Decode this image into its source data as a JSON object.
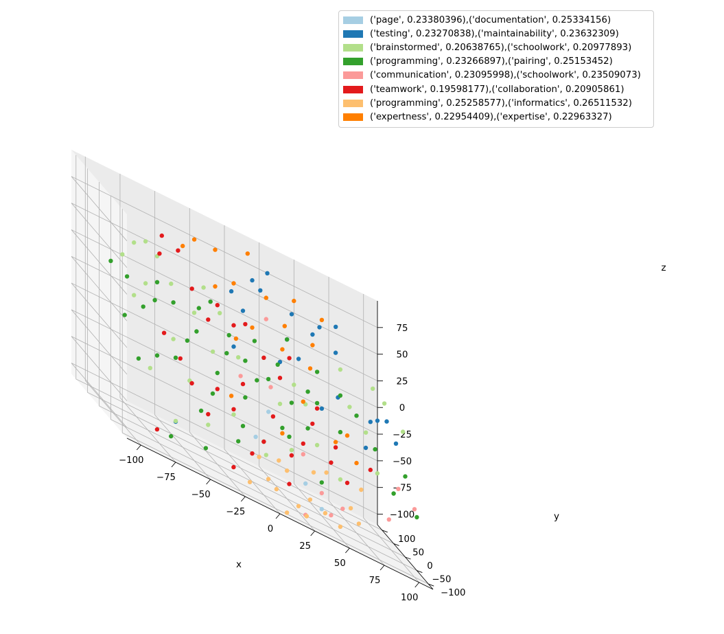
{
  "chart_data": {
    "type": "scatter",
    "projection": "3d",
    "xlabel": "x",
    "ylabel": "y",
    "zlabel": "z",
    "xlim": [
      -110,
      110
    ],
    "ylim": [
      -120,
      120
    ],
    "zlim": [
      -110,
      100
    ],
    "x_ticks": [
      -100,
      -75,
      -50,
      -25,
      0,
      25,
      50,
      75,
      100
    ],
    "y_ticks": [
      -100,
      -50,
      0,
      50,
      100
    ],
    "z_ticks": [
      -100,
      -75,
      -50,
      -25,
      0,
      25,
      50,
      75
    ],
    "grid": true,
    "legend_position": "top-right",
    "series": [
      {
        "name": "('page', 0.23380396),('documentation', 0.25334156)",
        "color": "#a6cee3",
        "points": [
          [
            -5,
            -45,
            -60
          ],
          [
            30,
            -50,
            -80
          ],
          [
            40,
            -60,
            -95
          ],
          [
            15,
            20,
            -40
          ]
        ]
      },
      {
        "name": "('testing', 0.23270838),('maintainability', 0.23632309)",
        "color": "#1f78b4",
        "points": [
          [
            -60,
            -30,
            -85
          ],
          [
            10,
            60,
            70
          ],
          [
            25,
            85,
            80
          ],
          [
            -5,
            60,
            50
          ],
          [
            15,
            55,
            65
          ],
          [
            40,
            70,
            55
          ],
          [
            70,
            60,
            65
          ],
          [
            50,
            40,
            50
          ],
          [
            30,
            30,
            35
          ],
          [
            65,
            30,
            45
          ],
          [
            35,
            10,
            25
          ],
          [
            60,
            -10,
            10
          ],
          [
            80,
            -30,
            5
          ],
          [
            100,
            -20,
            -5
          ],
          [
            90,
            0,
            5
          ],
          [
            20,
            0,
            15
          ],
          [
            45,
            -30,
            -5
          ],
          [
            -10,
            20,
            5
          ],
          [
            75,
            -40,
            -20
          ],
          [
            55,
            40,
            60
          ],
          [
            0,
            40,
            40
          ],
          [
            95,
            -10,
            10
          ]
        ]
      },
      {
        "name": "('brainstormed', 0.20638765),('schoolwork', 0.20977893)",
        "color": "#b2df8a",
        "points": [
          [
            -90,
            20,
            40
          ],
          [
            -80,
            30,
            55
          ],
          [
            -70,
            40,
            60
          ],
          [
            -60,
            50,
            50
          ],
          [
            -85,
            0,
            10
          ],
          [
            -75,
            10,
            25
          ],
          [
            -55,
            20,
            35
          ],
          [
            -30,
            30,
            45
          ],
          [
            -20,
            20,
            30
          ],
          [
            -40,
            10,
            20
          ],
          [
            -60,
            -20,
            -10
          ],
          [
            -30,
            -10,
            -5
          ],
          [
            -10,
            0,
            0
          ],
          [
            10,
            10,
            10
          ],
          [
            30,
            0,
            0
          ],
          [
            50,
            20,
            20
          ],
          [
            70,
            0,
            5
          ],
          [
            90,
            20,
            30
          ],
          [
            100,
            30,
            20
          ],
          [
            110,
            10,
            5
          ],
          [
            80,
            -10,
            -10
          ],
          [
            60,
            -20,
            -20
          ],
          [
            40,
            -40,
            -40
          ],
          [
            20,
            -50,
            -55
          ],
          [
            0,
            -60,
            -70
          ],
          [
            -20,
            -40,
            -50
          ],
          [
            -40,
            -50,
            -70
          ],
          [
            -50,
            -30,
            -40
          ],
          [
            -80,
            -40,
            -45
          ],
          [
            -65,
            -60,
            -80
          ],
          [
            15,
            -30,
            -20
          ],
          [
            35,
            -20,
            -10
          ],
          [
            85,
            -30,
            -40
          ],
          [
            95,
            -40,
            -50
          ],
          [
            55,
            -50,
            -60
          ],
          [
            70,
            40,
            30
          ]
        ]
      },
      {
        "name": "('programming', 0.23266897),('pairing', 0.25153452)",
        "color": "#33a02c",
        "points": [
          [
            -100,
            10,
            30
          ],
          [
            -95,
            -20,
            -10
          ],
          [
            -90,
            -50,
            -40
          ],
          [
            -85,
            30,
            20
          ],
          [
            -80,
            -10,
            5
          ],
          [
            -75,
            -40,
            -30
          ],
          [
            -70,
            0,
            15
          ],
          [
            -65,
            20,
            30
          ],
          [
            -60,
            -30,
            -25
          ],
          [
            -55,
            10,
            20
          ],
          [
            -50,
            -20,
            -5
          ],
          [
            -45,
            -50,
            -60
          ],
          [
            -40,
            0,
            5
          ],
          [
            -35,
            20,
            25
          ],
          [
            -30,
            -30,
            -20
          ],
          [
            -25,
            30,
            35
          ],
          [
            -20,
            -10,
            0
          ],
          [
            -15,
            10,
            15
          ],
          [
            -10,
            -30,
            -30
          ],
          [
            -5,
            0,
            0
          ],
          [
            0,
            -20,
            -10
          ],
          [
            5,
            20,
            20
          ],
          [
            10,
            -10,
            -5
          ],
          [
            15,
            -40,
            -40
          ],
          [
            20,
            10,
            10
          ],
          [
            25,
            -20,
            -15
          ],
          [
            30,
            30,
            35
          ],
          [
            35,
            -30,
            -30
          ],
          [
            40,
            0,
            0
          ],
          [
            45,
            -10,
            -5
          ],
          [
            50,
            20,
            20
          ],
          [
            60,
            -20,
            -20
          ],
          [
            65,
            10,
            10
          ],
          [
            75,
            0,
            0
          ],
          [
            85,
            -20,
            -20
          ],
          [
            95,
            -40,
            -50
          ],
          [
            105,
            -30,
            -30
          ],
          [
            110,
            -50,
            -60
          ],
          [
            -45,
            -70,
            -90
          ],
          [
            -20,
            -60,
            -70
          ],
          [
            0,
            -50,
            -60
          ],
          [
            20,
            -40,
            -45
          ],
          [
            40,
            -60,
            -70
          ],
          [
            -70,
            -70,
            -95
          ],
          [
            -35,
            -40,
            -40
          ],
          [
            -15,
            -50,
            -55
          ]
        ]
      },
      {
        "name": "('communication', 0.23095998),('schoolwork', 0.23509073)",
        "color": "#fb9a99",
        "points": [
          [
            20,
            60,
            40
          ],
          [
            -10,
            -10,
            -15
          ],
          [
            10,
            -20,
            -10
          ],
          [
            40,
            -60,
            -80
          ],
          [
            45,
            -70,
            -95
          ],
          [
            55,
            -60,
            -85
          ],
          [
            30,
            -40,
            -55
          ],
          [
            90,
            -50,
            -75
          ],
          [
            100,
            -30,
            -45
          ],
          [
            110,
            -40,
            -55
          ],
          [
            25,
            -80,
            -105
          ]
        ]
      },
      {
        "name": "('teamwork', 0.19598177),('collaboration', 0.20905861)",
        "color": "#e31a1c",
        "points": [
          [
            -60,
            40,
            55
          ],
          [
            -55,
            60,
            70
          ],
          [
            -45,
            50,
            65
          ],
          [
            -40,
            20,
            40
          ],
          [
            -30,
            10,
            20
          ],
          [
            -20,
            30,
            35
          ],
          [
            -10,
            20,
            25
          ],
          [
            0,
            30,
            30
          ],
          [
            10,
            10,
            10
          ],
          [
            20,
            0,
            0
          ],
          [
            -65,
            -10,
            -10
          ],
          [
            -55,
            -20,
            -25
          ],
          [
            -50,
            -40,
            -40
          ],
          [
            -40,
            -50,
            -60
          ],
          [
            -30,
            -30,
            -35
          ],
          [
            -20,
            -40,
            -45
          ],
          [
            -10,
            -60,
            -75
          ],
          [
            0,
            -50,
            -60
          ],
          [
            10,
            -30,
            -35
          ],
          [
            20,
            -50,
            -60
          ],
          [
            30,
            -40,
            -45
          ],
          [
            40,
            -20,
            -25
          ],
          [
            50,
            -40,
            -50
          ],
          [
            60,
            -50,
            -60
          ],
          [
            80,
            -30,
            -40
          ],
          [
            -80,
            -70,
            -95
          ],
          [
            -25,
            -70,
            -95
          ],
          [
            -10,
            -20,
            -20
          ],
          [
            15,
            -70,
            -85
          ],
          [
            30,
            20,
            20
          ],
          [
            45,
            -10,
            -10
          ],
          [
            55,
            -30,
            -35
          ]
        ]
      },
      {
        "name": "('programming', 0.25258577),('informatics', 0.26511532)",
        "color": "#fdbf6f",
        "points": [
          [
            -15,
            -80,
            -100
          ],
          [
            0,
            -70,
            -90
          ],
          [
            5,
            -75,
            -95
          ],
          [
            10,
            -90,
            -110
          ],
          [
            20,
            -80,
            -100
          ],
          [
            25,
            -85,
            -105
          ],
          [
            30,
            -70,
            -90
          ],
          [
            40,
            -75,
            -95
          ],
          [
            50,
            -80,
            -100
          ],
          [
            60,
            -65,
            -80
          ],
          [
            65,
            -70,
            -90
          ],
          [
            15,
            -60,
            -75
          ],
          [
            45,
            -50,
            -60
          ],
          [
            70,
            -50,
            -60
          ],
          [
            10,
            -55,
            -70
          ],
          [
            -5,
            -60,
            -75
          ],
          [
            35,
            -55,
            -65
          ]
        ]
      },
      {
        "name": "('expertness', 0.22954409),('expertise', 0.22963327)",
        "color": "#ff7f00",
        "points": [
          [
            -30,
            70,
            80
          ],
          [
            -40,
            60,
            70
          ],
          [
            -15,
            70,
            80
          ],
          [
            10,
            80,
            90
          ],
          [
            -5,
            50,
            60
          ],
          [
            -20,
            40,
            50
          ],
          [
            40,
            60,
            70
          ],
          [
            60,
            60,
            65
          ],
          [
            30,
            40,
            45
          ],
          [
            5,
            30,
            30
          ],
          [
            20,
            60,
            60
          ],
          [
            50,
            40,
            40
          ],
          [
            45,
            20,
            20
          ],
          [
            35,
            -10,
            -10
          ],
          [
            65,
            -20,
            -20
          ],
          [
            55,
            -30,
            -30
          ],
          [
            -10,
            10,
            15
          ],
          [
            25,
            20,
            25
          ],
          [
            70,
            -30,
            -40
          ],
          [
            15,
            -40,
            -45
          ],
          [
            -20,
            -30,
            -35
          ]
        ]
      }
    ]
  }
}
